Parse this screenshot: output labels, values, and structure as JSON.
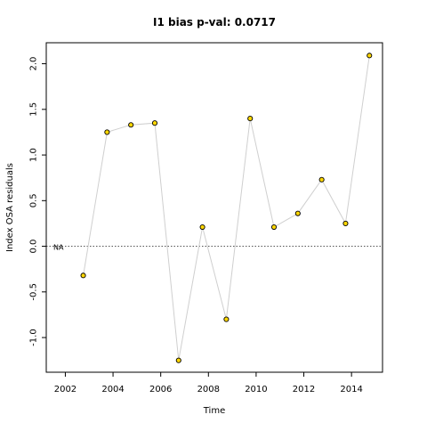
{
  "chart_data": {
    "type": "scatter",
    "title": "I1 bias p-val: 0.0717",
    "title_color": "#1a8a1a",
    "xlabel": "Time",
    "ylabel": "Index OSA residuals",
    "xlim": [
      2001.2,
      2015.3
    ],
    "ylim": [
      -1.38,
      2.23
    ],
    "x_ticks": [
      2002,
      2004,
      2006,
      2008,
      2010,
      2012,
      2014
    ],
    "x_tick_labels": [
      "2002",
      "2004",
      "2006",
      "2008",
      "2010",
      "2012",
      "2014"
    ],
    "y_ticks": [
      -1.0,
      -0.5,
      0.0,
      0.5,
      1.0,
      1.5,
      2.0
    ],
    "y_tick_labels": [
      "-1.0",
      "-0.5",
      "0.0",
      "0.5",
      "1.0",
      "1.5",
      "2.0"
    ],
    "reference_line": {
      "y": 0,
      "style": "dotted",
      "label": "NA"
    },
    "grid": false,
    "series": [
      {
        "x": [
          2002.75,
          2003.75,
          2004.75,
          2005.75,
          2006.75,
          2007.75,
          2008.75,
          2009.75,
          2010.75,
          2011.75,
          2012.75,
          2013.75,
          2014.75
        ],
        "y": [
          -0.32,
          1.25,
          1.33,
          1.35,
          -1.25,
          0.21,
          -0.8,
          1.4,
          0.21,
          0.36,
          0.73,
          0.25,
          2.09
        ],
        "marker_fill": "#ffd700",
        "marker_stroke": "#000000",
        "line_color": "#cfcfcf"
      }
    ]
  }
}
